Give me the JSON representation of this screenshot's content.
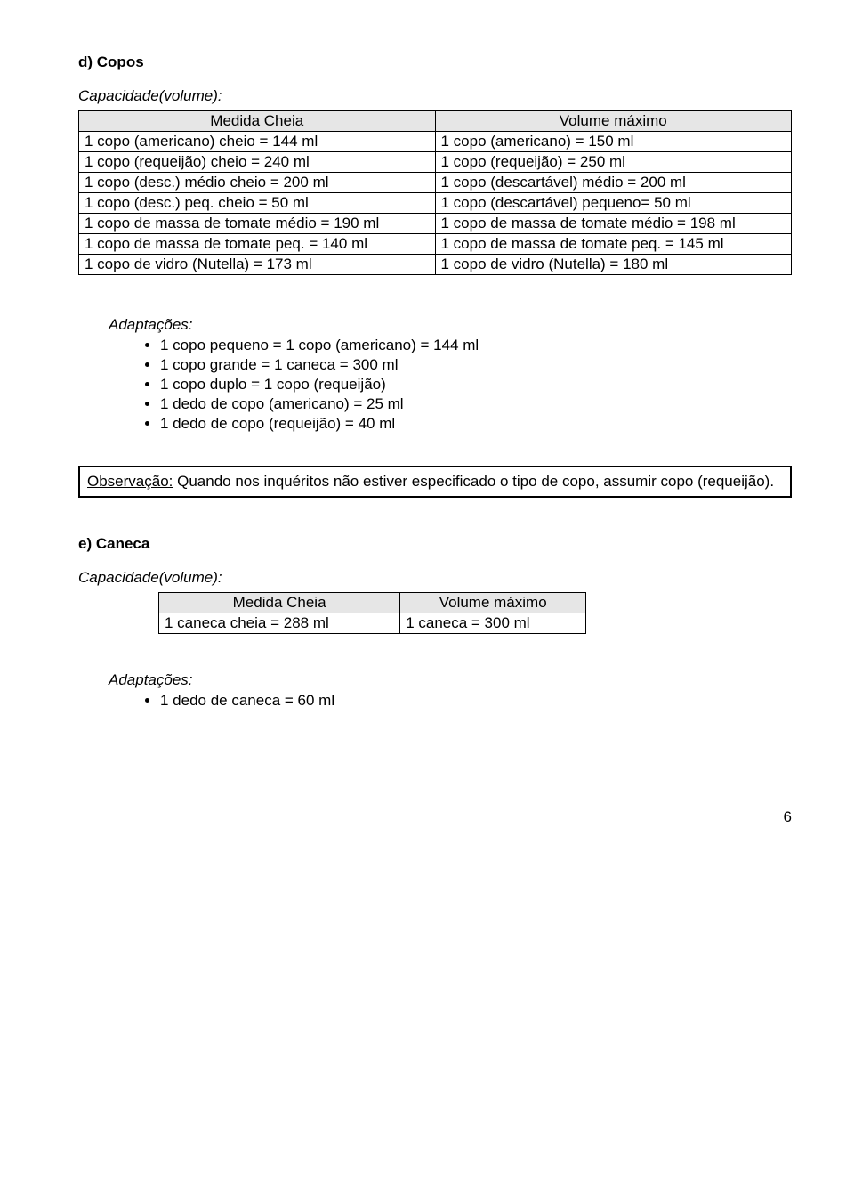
{
  "sectionD": {
    "heading": "d) Copos",
    "capacidade": "Capacidade(volume):",
    "table": {
      "header": [
        "Medida Cheia",
        "Volume máximo"
      ],
      "rows": [
        [
          "1 copo (americano) cheio = 144 ml",
          "1 copo (americano) = 150 ml"
        ],
        [
          "1 copo (requeijão) cheio = 240 ml",
          "1 copo (requeijão) = 250 ml"
        ],
        [
          "1 copo (desc.) médio cheio = 200 ml",
          "1 copo (descartável) médio = 200 ml"
        ],
        [
          "1 copo (desc.) peq.  cheio = 50 ml",
          "1 copo (descartável) pequeno= 50 ml"
        ],
        [
          "1 copo de massa de tomate médio = 190 ml",
          "1 copo de massa de tomate médio = 198 ml"
        ],
        [
          "1 copo de massa de tomate peq. = 140 ml",
          "1 copo de massa de tomate peq. = 145 ml"
        ],
        [
          "1 copo de vidro (Nutella) = 173 ml",
          "1 copo de vidro (Nutella) = 180 ml"
        ]
      ]
    },
    "adaptTitle": "Adaptações:",
    "adaptItems": [
      "1 copo pequeno = 1 copo (americano) = 144 ml",
      "1 copo grande = 1 caneca = 300 ml",
      "1 copo duplo = 1 copo (requeijão)",
      "1 dedo de copo (americano) = 25 ml",
      "1 dedo de copo (requeijão) = 40 ml"
    ]
  },
  "obs": {
    "label": "Observação:",
    "text": " Quando nos inquéritos não estiver especificado o tipo de copo, assumir copo (requeijão)."
  },
  "sectionE": {
    "heading": "e) Caneca",
    "capacidade": "Capacidade(volume):",
    "table": {
      "header": [
        "Medida Cheia",
        "Volume máximo"
      ],
      "rows": [
        [
          "1 caneca cheia = 288 ml",
          "1 caneca = 300 ml"
        ]
      ]
    },
    "adaptTitle": "Adaptações:",
    "adaptItems": [
      "1 dedo de caneca = 60 ml"
    ]
  },
  "pageNumber": "6"
}
